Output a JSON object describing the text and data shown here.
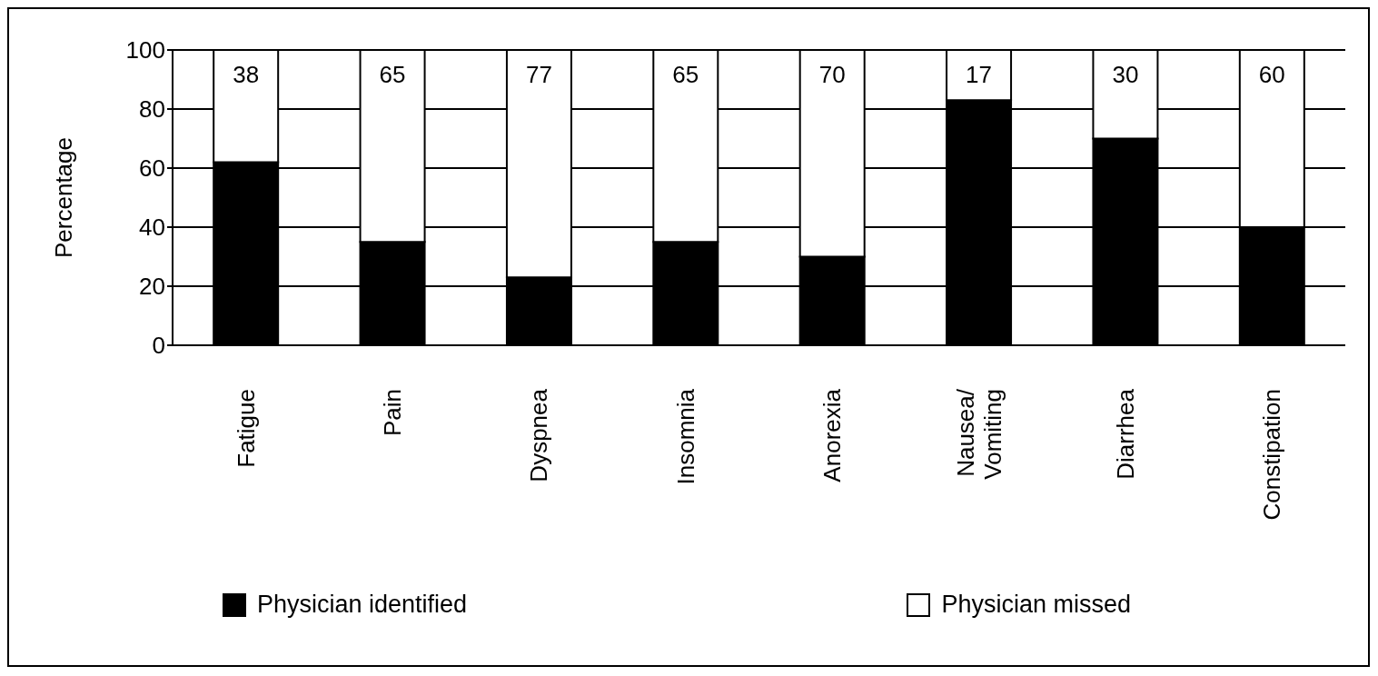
{
  "chart_data": {
    "type": "bar",
    "stacked": true,
    "ylabel": "Percentage",
    "categories": [
      "Fatigue",
      "Pain",
      "Dyspnea",
      "Insomnia",
      "Anorexia",
      "Nausea/Vomiting",
      "Diarrhea",
      "Constipation"
    ],
    "series": [
      {
        "name": "Physician identified",
        "color": "#000000",
        "values": [
          62,
          35,
          23,
          35,
          30,
          83,
          70,
          40
        ]
      },
      {
        "name": "Physician missed",
        "color": "#ffffff",
        "values": [
          38,
          65,
          77,
          65,
          70,
          17,
          30,
          60
        ],
        "value_labels": [
          "38",
          "65",
          "77",
          "65",
          "70",
          "17",
          "30",
          "60"
        ]
      }
    ],
    "ylim": [
      0,
      100
    ],
    "yticks": [
      0,
      20,
      40,
      60,
      80,
      100
    ],
    "grid": "y",
    "legend": "bottom"
  }
}
